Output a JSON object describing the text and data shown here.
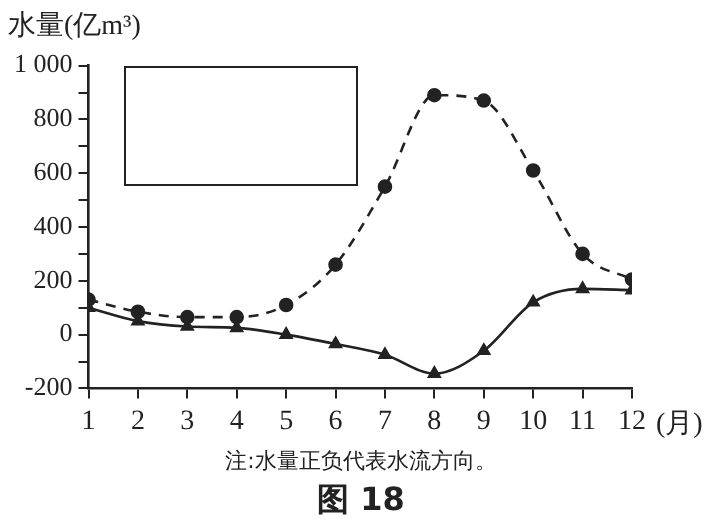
{
  "chart_data": {
    "type": "line",
    "title": "图 18",
    "ylabel": "水量(亿m³)",
    "xlabel": "(月)",
    "annotations": [
      "注:水量正负代表水流方向。"
    ],
    "x": [
      1,
      2,
      3,
      4,
      5,
      6,
      7,
      8,
      9,
      10,
      11,
      12
    ],
    "series": [
      {
        "color": "#222222",
        "marker": "circle",
        "line_style": "dashed",
        "values": [
          130,
          85,
          65,
          65,
          110,
          260,
          550,
          890,
          870,
          610,
          300,
          205
        ]
      },
      {
        "color": "#222222",
        "marker": "triangle",
        "line_style": "solid",
        "values": [
          100,
          50,
          30,
          25,
          0,
          -35,
          -75,
          -145,
          -60,
          120,
          170,
          165
        ]
      }
    ],
    "xlim": [
      1,
      12
    ],
    "xticks": [
      1,
      2,
      3,
      4,
      5,
      6,
      7,
      8,
      9,
      10,
      11,
      12
    ],
    "ylim": [
      -200,
      1000
    ],
    "yticks": [
      -200,
      {
        "value": -100,
        "label": null
      },
      0,
      {
        "value": 100,
        "label": null
      },
      200,
      {
        "value": 300,
        "label": null
      },
      400,
      {
        "value": 500,
        "label": null
      },
      600,
      {
        "value": 700,
        "label": null
      },
      800,
      {
        "value": 900,
        "label": null
      },
      {
        "value": 1000,
        "label": "1 000"
      }
    ],
    "grid": false,
    "legend": false
  }
}
